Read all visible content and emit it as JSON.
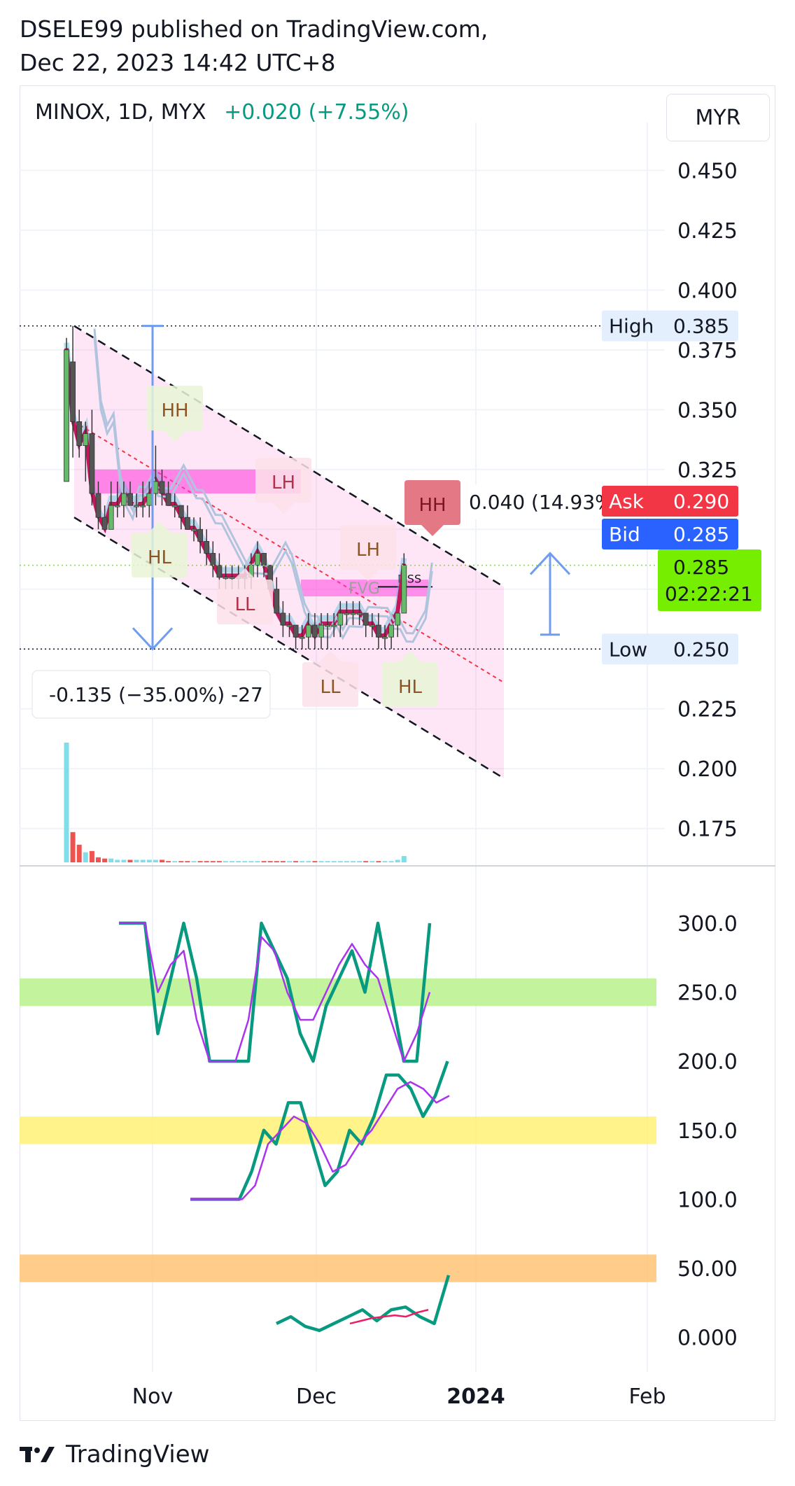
{
  "publisher_line1": "DSELE99 published on TradingView.com,",
  "publisher_line2": "Dec 22, 2023 14:42 UTC+8",
  "symbol": {
    "name": "MINOX, 1D, MYX",
    "change": "+0.020 (+7.55%)"
  },
  "currency": "MYR",
  "footer_brand": "TradingView",
  "colors": {
    "up": "#089981",
    "down": "#f23645",
    "ask": "#f23645",
    "bid": "#2962ff",
    "last": "#76ee00",
    "channel": "#ff66cc"
  },
  "chart_data": [
    {
      "type": "candlestick",
      "title": "MINOX, 1D, MYX",
      "x_ticks": [
        "Nov",
        "Dec",
        "2024",
        "Feb"
      ],
      "y_ticks": [
        "0.450",
        "0.425",
        "0.400",
        "0.375",
        "0.350",
        "0.325",
        "0.300",
        "0.275",
        "0.250",
        "0.225",
        "0.200",
        "0.175"
      ],
      "ylim": [
        0.16,
        0.47
      ],
      "candles": [
        {
          "o": 0.32,
          "h": 0.38,
          "l": 0.32,
          "c": 0.375
        },
        {
          "o": 0.37,
          "h": 0.385,
          "l": 0.33,
          "c": 0.345
        },
        {
          "o": 0.345,
          "h": 0.35,
          "l": 0.33,
          "c": 0.335
        },
        {
          "o": 0.335,
          "h": 0.345,
          "l": 0.32,
          "c": 0.34
        },
        {
          "o": 0.34,
          "h": 0.35,
          "l": 0.31,
          "c": 0.315
        },
        {
          "o": 0.315,
          "h": 0.32,
          "l": 0.3,
          "c": 0.305
        },
        {
          "o": 0.305,
          "h": 0.31,
          "l": 0.3,
          "c": 0.3
        },
        {
          "o": 0.3,
          "h": 0.32,
          "l": 0.3,
          "c": 0.31
        },
        {
          "o": 0.31,
          "h": 0.32,
          "l": 0.305,
          "c": 0.31
        },
        {
          "o": 0.31,
          "h": 0.32,
          "l": 0.305,
          "c": 0.315
        },
        {
          "o": 0.315,
          "h": 0.32,
          "l": 0.31,
          "c": 0.31
        },
        {
          "o": 0.31,
          "h": 0.315,
          "l": 0.305,
          "c": 0.31
        },
        {
          "o": 0.31,
          "h": 0.32,
          "l": 0.305,
          "c": 0.31
        },
        {
          "o": 0.31,
          "h": 0.32,
          "l": 0.305,
          "c": 0.315
        },
        {
          "o": 0.315,
          "h": 0.335,
          "l": 0.31,
          "c": 0.32
        },
        {
          "o": 0.32,
          "h": 0.325,
          "l": 0.31,
          "c": 0.315
        },
        {
          "o": 0.315,
          "h": 0.32,
          "l": 0.31,
          "c": 0.31
        },
        {
          "o": 0.31,
          "h": 0.315,
          "l": 0.305,
          "c": 0.31
        },
        {
          "o": 0.31,
          "h": 0.31,
          "l": 0.3,
          "c": 0.305
        },
        {
          "o": 0.305,
          "h": 0.31,
          "l": 0.3,
          "c": 0.3
        },
        {
          "o": 0.3,
          "h": 0.305,
          "l": 0.295,
          "c": 0.3
        },
        {
          "o": 0.3,
          "h": 0.305,
          "l": 0.29,
          "c": 0.295
        },
        {
          "o": 0.295,
          "h": 0.3,
          "l": 0.285,
          "c": 0.29
        },
        {
          "o": 0.29,
          "h": 0.295,
          "l": 0.28,
          "c": 0.285
        },
        {
          "o": 0.285,
          "h": 0.29,
          "l": 0.275,
          "c": 0.28
        },
        {
          "o": 0.28,
          "h": 0.285,
          "l": 0.275,
          "c": 0.28
        },
        {
          "o": 0.28,
          "h": 0.285,
          "l": 0.275,
          "c": 0.28
        },
        {
          "o": 0.28,
          "h": 0.285,
          "l": 0.275,
          "c": 0.28
        },
        {
          "o": 0.28,
          "h": 0.285,
          "l": 0.275,
          "c": 0.28
        },
        {
          "o": 0.28,
          "h": 0.29,
          "l": 0.275,
          "c": 0.285
        },
        {
          "o": 0.285,
          "h": 0.295,
          "l": 0.28,
          "c": 0.29
        },
        {
          "o": 0.29,
          "h": 0.29,
          "l": 0.28,
          "c": 0.285
        },
        {
          "o": 0.285,
          "h": 0.285,
          "l": 0.275,
          "c": 0.275
        },
        {
          "o": 0.275,
          "h": 0.28,
          "l": 0.265,
          "c": 0.265
        },
        {
          "o": 0.265,
          "h": 0.27,
          "l": 0.255,
          "c": 0.26
        },
        {
          "o": 0.26,
          "h": 0.265,
          "l": 0.255,
          "c": 0.26
        },
        {
          "o": 0.26,
          "h": 0.26,
          "l": 0.25,
          "c": 0.255
        },
        {
          "o": 0.255,
          "h": 0.26,
          "l": 0.25,
          "c": 0.255
        },
        {
          "o": 0.255,
          "h": 0.265,
          "l": 0.25,
          "c": 0.26
        },
        {
          "o": 0.26,
          "h": 0.265,
          "l": 0.25,
          "c": 0.255
        },
        {
          "o": 0.255,
          "h": 0.265,
          "l": 0.25,
          "c": 0.26
        },
        {
          "o": 0.26,
          "h": 0.265,
          "l": 0.25,
          "c": 0.26
        },
        {
          "o": 0.26,
          "h": 0.265,
          "l": 0.255,
          "c": 0.26
        },
        {
          "o": 0.26,
          "h": 0.27,
          "l": 0.255,
          "c": 0.265
        },
        {
          "o": 0.265,
          "h": 0.27,
          "l": 0.26,
          "c": 0.265
        },
        {
          "o": 0.265,
          "h": 0.27,
          "l": 0.26,
          "c": 0.265
        },
        {
          "o": 0.265,
          "h": 0.27,
          "l": 0.26,
          "c": 0.265
        },
        {
          "o": 0.265,
          "h": 0.265,
          "l": 0.255,
          "c": 0.26
        },
        {
          "o": 0.26,
          "h": 0.265,
          "l": 0.255,
          "c": 0.26
        },
        {
          "o": 0.26,
          "h": 0.265,
          "l": 0.25,
          "c": 0.255
        },
        {
          "o": 0.255,
          "h": 0.26,
          "l": 0.25,
          "c": 0.255
        },
        {
          "o": 0.255,
          "h": 0.26,
          "l": 0.25,
          "c": 0.26
        },
        {
          "o": 0.26,
          "h": 0.265,
          "l": 0.255,
          "c": 0.265
        },
        {
          "o": 0.265,
          "h": 0.29,
          "l": 0.265,
          "c": 0.285
        }
      ],
      "volume_color_note": "bars cyan when up, red when down",
      "volumes": [
        9.5,
        2.4,
        1.4,
        0.8,
        0.9,
        0.4,
        0.3,
        0.3,
        0.2,
        0.2,
        0.2,
        0.2,
        0.2,
        0.2,
        0.2,
        0.2,
        0.1,
        0.1,
        0.1,
        0.1,
        0.1,
        0.1,
        0.1,
        0.1,
        0.1,
        0.1,
        0.1,
        0.1,
        0.1,
        0.1,
        0.1,
        0.1,
        0.1,
        0.1,
        0.1,
        0.1,
        0.1,
        0.1,
        0.1,
        0.1,
        0.1,
        0.1,
        0.1,
        0.1,
        0.1,
        0.1,
        0.1,
        0.1,
        0.1,
        0.1,
        0.1,
        0.1,
        0.2,
        0.5
      ],
      "price_labels": {
        "high": {
          "label": "High",
          "value": "0.385"
        },
        "low": {
          "label": "Low",
          "value": "0.250"
        },
        "ask": {
          "label": "Ask",
          "value": "0.290"
        },
        "bid": {
          "label": "Bid",
          "value": "0.285"
        },
        "last": {
          "value": "0.285",
          "countdown": "02:22:21"
        }
      },
      "annotations": {
        "structure": [
          "HH",
          "HL",
          "LH",
          "LL",
          "LH",
          "LL",
          "HL",
          "HH"
        ],
        "fvg": "FVG",
        "mss": "MSS",
        "measure_up": "0.040 (14.93%)",
        "measure_down": "-0.135 (−35.00%) -27"
      }
    },
    {
      "type": "line",
      "y_ticks": [
        "300.0",
        "250.0",
        "200.0",
        "150.0",
        "100.0",
        "50.00",
        "0.000"
      ],
      "ylim": [
        -25,
        340
      ],
      "bands": [
        {
          "from": 240,
          "to": 260,
          "color": "#b8f28c"
        },
        {
          "from": 140,
          "to": 160,
          "color": "#fff176"
        },
        {
          "from": 40,
          "to": 60,
          "color": "#ffc374"
        }
      ],
      "series": [
        {
          "values": [
            300,
            300,
            300,
            220,
            260,
            300,
            260,
            200,
            200,
            200,
            200,
            300,
            280,
            260,
            220,
            200,
            240,
            260,
            280,
            250,
            300,
            250,
            200,
            200,
            300
          ],
          "color": "#089981"
        },
        {
          "values": [
            300,
            300,
            300,
            250,
            270,
            280,
            230,
            200,
            200,
            200,
            230,
            290,
            280,
            250,
            230,
            230,
            250,
            270,
            285,
            270,
            260,
            230,
            200,
            220,
            250
          ],
          "color": "#aa33ee"
        },
        {
          "values": [
            100,
            100,
            100,
            100,
            100,
            120,
            150,
            140,
            170,
            170,
            140,
            110,
            120,
            150,
            140,
            160,
            190,
            190,
            180,
            160,
            175,
            200
          ],
          "color": "#089981"
        },
        {
          "values": [
            100,
            100,
            100,
            100,
            100,
            110,
            140,
            150,
            160,
            155,
            140,
            120,
            125,
            140,
            150,
            165,
            180,
            185,
            180,
            170,
            175
          ],
          "color": "#aa33ee"
        },
        {
          "values": [
            10,
            15,
            8,
            5,
            10,
            15,
            20,
            12,
            20,
            22,
            15,
            10,
            45
          ],
          "color": "#089981"
        },
        {
          "values": [
            10,
            12,
            14,
            15,
            16,
            15,
            18,
            20
          ],
          "color": "#e91e63"
        }
      ]
    }
  ]
}
